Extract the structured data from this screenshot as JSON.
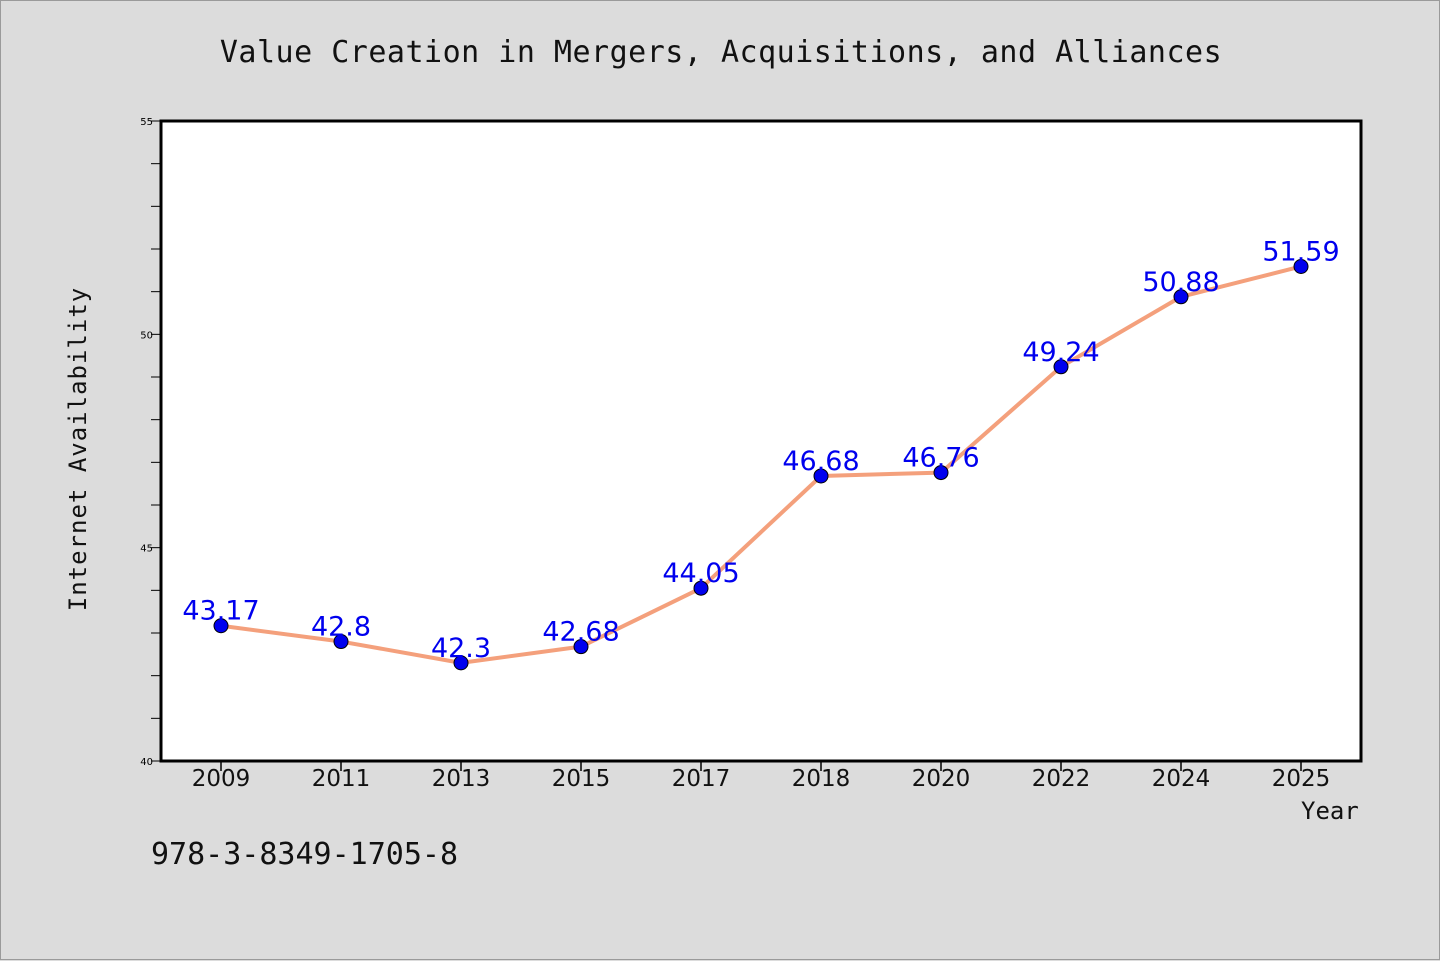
{
  "chart_data": {
    "type": "line",
    "title": "Value Creation in Mergers, Acquisitions, and Alliances",
    "xlabel": "Year",
    "ylabel": "Internet Availability",
    "categories": [
      "2009",
      "2011",
      "2013",
      "2015",
      "2017",
      "2018",
      "2020",
      "2022",
      "2024",
      "2025"
    ],
    "series": [
      {
        "values": [
          43.17,
          42.8,
          42.3,
          42.68,
          44.05,
          46.68,
          46.76,
          49.24,
          50.88,
          51.59
        ]
      }
    ],
    "data_labels": [
      "43.17",
      "42.8",
      "42.3",
      "42.68",
      "44.05",
      "46.68",
      "46.76",
      "49.24",
      "50.88",
      "51.59"
    ],
    "ylim": [
      40,
      55
    ],
    "yticks": [
      40,
      45,
      50,
      55
    ],
    "grid": false,
    "line_color": "#f4a07c",
    "marker_color": "#0000ee",
    "label_color": "#0000ee"
  },
  "footer": {
    "isbn": "978-3-8349-1705-8"
  }
}
